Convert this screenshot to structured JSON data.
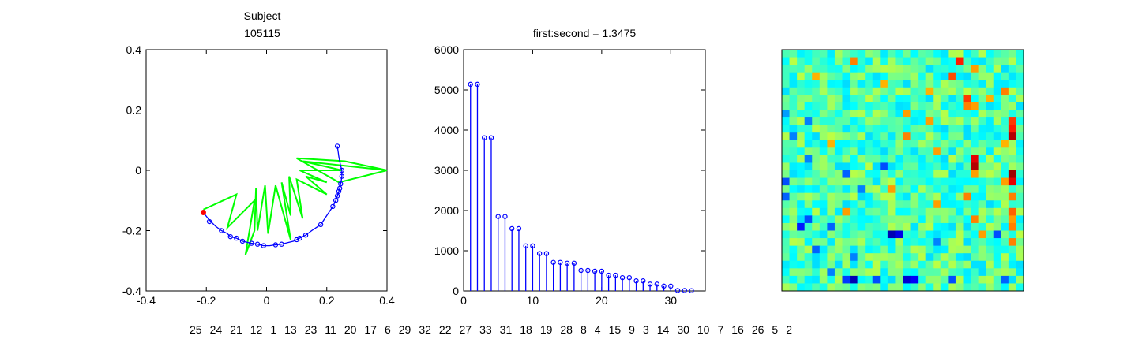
{
  "chart_data": [
    {
      "type": "line",
      "title_lines": [
        "Subject",
        "105115"
      ],
      "xlim": [
        -0.4,
        0.4
      ],
      "ylim": [
        -0.4,
        0.4
      ],
      "xticks": [
        -0.4,
        -0.2,
        0,
        0.2,
        0.4
      ],
      "yticks": [
        -0.4,
        -0.2,
        0,
        0.2,
        0.4
      ],
      "tick_labels_x": [
        "-0.4",
        "-0.2",
        "0",
        "0.2",
        "0.4"
      ],
      "tick_labels_y": [
        "-0.4",
        "-0.2",
        "0",
        "0.2",
        "0.4"
      ],
      "grid": false,
      "colors": {
        "curve": "#0000ff",
        "markers": "#0000ff",
        "start_marker": "#ff0000",
        "spokes": "#00ff00"
      },
      "curve_points": [
        [
          -0.21,
          -0.14
        ],
        [
          -0.19,
          -0.165
        ],
        [
          -0.17,
          -0.185
        ],
        [
          -0.15,
          -0.2
        ],
        [
          -0.13,
          -0.21
        ],
        [
          -0.12,
          -0.22
        ],
        [
          -0.1,
          -0.225
        ],
        [
          -0.09,
          -0.23
        ],
        [
          -0.08,
          -0.235
        ],
        [
          -0.06,
          -0.24
        ],
        [
          -0.05,
          -0.242
        ],
        [
          -0.03,
          -0.245
        ],
        [
          -0.01,
          -0.25
        ],
        [
          0.01,
          -0.25
        ],
        [
          0.03,
          -0.247
        ],
        [
          0.05,
          -0.245
        ],
        [
          0.07,
          -0.24
        ],
        [
          0.09,
          -0.235
        ],
        [
          0.1,
          -0.23
        ],
        [
          0.11,
          -0.225
        ],
        [
          0.13,
          -0.215
        ],
        [
          0.15,
          -0.2
        ],
        [
          0.18,
          -0.18
        ],
        [
          0.2,
          -0.15
        ],
        [
          0.22,
          -0.12
        ],
        [
          0.23,
          -0.1
        ],
        [
          0.235,
          -0.085
        ],
        [
          0.24,
          -0.07
        ],
        [
          0.243,
          -0.06
        ],
        [
          0.246,
          -0.045
        ],
        [
          0.248,
          -0.035
        ],
        [
          0.25,
          -0.02
        ],
        [
          0.25,
          0.0
        ],
        [
          0.245,
          0.02
        ],
        [
          0.24,
          0.045
        ],
        [
          0.238,
          0.06
        ],
        [
          0.235,
          0.08
        ]
      ],
      "markers": [
        [
          -0.19,
          -0.17
        ],
        [
          -0.15,
          -0.2
        ],
        [
          -0.12,
          -0.22
        ],
        [
          -0.1,
          -0.225
        ],
        [
          -0.08,
          -0.235
        ],
        [
          -0.05,
          -0.242
        ],
        [
          -0.03,
          -0.245
        ],
        [
          -0.01,
          -0.25
        ],
        [
          0.03,
          -0.247
        ],
        [
          0.05,
          -0.245
        ],
        [
          0.1,
          -0.23
        ],
        [
          0.11,
          -0.225
        ],
        [
          0.13,
          -0.215
        ],
        [
          0.18,
          -0.18
        ],
        [
          0.22,
          -0.12
        ],
        [
          0.23,
          -0.1
        ],
        [
          0.235,
          -0.085
        ],
        [
          0.24,
          -0.07
        ],
        [
          0.243,
          -0.06
        ],
        [
          0.246,
          -0.045
        ],
        [
          0.25,
          -0.02
        ],
        [
          0.25,
          0.0
        ],
        [
          0.235,
          0.08
        ]
      ],
      "start_point": [
        -0.21,
        -0.14
      ],
      "spoke_path": [
        [
          -0.21,
          -0.13
        ],
        [
          -0.1,
          -0.08
        ],
        [
          -0.13,
          -0.19
        ],
        [
          -0.04,
          -0.1
        ],
        [
          -0.07,
          -0.28
        ],
        [
          -0.04,
          -0.2
        ],
        [
          -0.035,
          -0.06
        ],
        [
          -0.03,
          -0.2
        ],
        [
          -0.005,
          -0.05
        ],
        [
          0.005,
          -0.21
        ],
        [
          0.03,
          -0.05
        ],
        [
          0.08,
          -0.23
        ],
        [
          0.05,
          -0.04
        ],
        [
          0.08,
          -0.15
        ],
        [
          0.075,
          -0.02
        ],
        [
          0.12,
          -0.16
        ],
        [
          0.1,
          -0.03
        ],
        [
          0.2,
          -0.08
        ],
        [
          0.13,
          -0.02
        ],
        [
          0.2,
          -0.04
        ],
        [
          0.11,
          0.0
        ],
        [
          0.25,
          0.0
        ],
        [
          0.12,
          0.03
        ],
        [
          0.4,
          0.0
        ],
        [
          0.26,
          0.03
        ],
        [
          0.1,
          0.04
        ],
        [
          0.24,
          -0.04
        ],
        [
          0.4,
          0.0
        ]
      ]
    },
    {
      "type": "bar",
      "subtype": "stem",
      "title": "first:second = 1.3475",
      "xlim": [
        0,
        35
      ],
      "ylim": [
        0,
        6000
      ],
      "xticks": [
        0,
        10,
        20,
        30
      ],
      "yticks": [
        0,
        1000,
        2000,
        3000,
        4000,
        5000,
        6000
      ],
      "tick_labels_x": [
        "0",
        "10",
        "20",
        "30"
      ],
      "tick_labels_y": [
        "0",
        "1000",
        "2000",
        "3000",
        "4000",
        "5000",
        "6000"
      ],
      "grid": false,
      "color": "#0000ff",
      "x": [
        1,
        2,
        3,
        4,
        5,
        6,
        7,
        8,
        9,
        10,
        11,
        12,
        13,
        14,
        15,
        16,
        17,
        18,
        19,
        20,
        21,
        22,
        23,
        24,
        25,
        26,
        27,
        28,
        29,
        30,
        31,
        32,
        33
      ],
      "values": [
        5140,
        5140,
        3810,
        3810,
        1850,
        1850,
        1550,
        1550,
        1120,
        1120,
        930,
        930,
        710,
        710,
        690,
        690,
        510,
        510,
        490,
        490,
        390,
        390,
        330,
        330,
        250,
        250,
        170,
        170,
        120,
        120,
        10,
        10,
        5
      ]
    },
    {
      "type": "heatmap",
      "colormap": "jet",
      "rows": 32,
      "cols": 32,
      "base_level": 0.45,
      "highlights": [
        {
          "row": 1,
          "col": 9,
          "level": 0.75
        },
        {
          "row": 1,
          "col": 23,
          "level": 0.85
        },
        {
          "row": 2,
          "col": 25,
          "level": 0.72
        },
        {
          "row": 3,
          "col": 4,
          "level": 0.7
        },
        {
          "row": 3,
          "col": 22,
          "level": 0.8
        },
        {
          "row": 4,
          "col": 13,
          "level": 0.7
        },
        {
          "row": 5,
          "col": 19,
          "level": 0.7
        },
        {
          "row": 5,
          "col": 29,
          "level": 0.75
        },
        {
          "row": 6,
          "col": 24,
          "level": 0.82
        },
        {
          "row": 6,
          "col": 27,
          "level": 0.7
        },
        {
          "row": 7,
          "col": 24,
          "level": 0.75
        },
        {
          "row": 7,
          "col": 25,
          "level": 0.72
        },
        {
          "row": 8,
          "col": 16,
          "level": 0.72
        },
        {
          "row": 9,
          "col": 19,
          "level": 0.72
        },
        {
          "row": 9,
          "col": 30,
          "level": 0.82
        },
        {
          "row": 10,
          "col": 30,
          "level": 0.85
        },
        {
          "row": 11,
          "col": 16,
          "level": 0.75
        },
        {
          "row": 11,
          "col": 30,
          "level": 0.95
        },
        {
          "row": 12,
          "col": 6,
          "level": 0.7
        },
        {
          "row": 12,
          "col": 29,
          "level": 0.7
        },
        {
          "row": 13,
          "col": 20,
          "level": 0.72
        },
        {
          "row": 16,
          "col": 25,
          "level": 0.72
        },
        {
          "row": 17,
          "col": 29,
          "level": 0.72
        },
        {
          "row": 18,
          "col": 14,
          "level": 0.72
        },
        {
          "row": 19,
          "col": 24,
          "level": 0.75
        },
        {
          "row": 19,
          "col": 30,
          "level": 0.75
        },
        {
          "row": 20,
          "col": 20,
          "level": 0.72
        },
        {
          "row": 21,
          "col": 8,
          "level": 0.72
        },
        {
          "row": 22,
          "col": 25,
          "level": 0.75
        },
        {
          "row": 22,
          "col": 30,
          "level": 0.72
        },
        {
          "row": 24,
          "col": 26,
          "level": 0.72
        },
        {
          "row": 25,
          "col": 30,
          "level": 0.75
        },
        {
          "row": 14,
          "col": 25,
          "level": 0.9
        },
        {
          "row": 15,
          "col": 25,
          "level": 0.95
        },
        {
          "row": 16,
          "col": 30,
          "level": 0.97
        },
        {
          "row": 17,
          "col": 30,
          "level": 0.9
        },
        {
          "row": 21,
          "col": 30,
          "level": 0.78
        },
        {
          "row": 23,
          "col": 30,
          "level": 0.75
        },
        {
          "row": 8,
          "col": 0,
          "level": 0.28
        },
        {
          "row": 9,
          "col": 3,
          "level": 0.25
        },
        {
          "row": 11,
          "col": 1,
          "level": 0.25
        },
        {
          "row": 14,
          "col": 3,
          "level": 0.25
        },
        {
          "row": 15,
          "col": 13,
          "level": 0.2
        },
        {
          "row": 16,
          "col": 8,
          "level": 0.22
        },
        {
          "row": 17,
          "col": 0,
          "level": 0.2
        },
        {
          "row": 18,
          "col": 10,
          "level": 0.25
        },
        {
          "row": 19,
          "col": 0,
          "level": 0.22
        },
        {
          "row": 22,
          "col": 3,
          "level": 0.2
        },
        {
          "row": 23,
          "col": 2,
          "level": 0.15
        },
        {
          "row": 23,
          "col": 6,
          "level": 0.22
        },
        {
          "row": 24,
          "col": 14,
          "level": 0.05
        },
        {
          "row": 24,
          "col": 15,
          "level": 0.1
        },
        {
          "row": 24,
          "col": 28,
          "level": 0.2
        },
        {
          "row": 25,
          "col": 20,
          "level": 0.25
        },
        {
          "row": 26,
          "col": 4,
          "level": 0.22
        },
        {
          "row": 27,
          "col": 9,
          "level": 0.25
        },
        {
          "row": 29,
          "col": 6,
          "level": 0.25
        },
        {
          "row": 30,
          "col": 8,
          "level": 0.18
        },
        {
          "row": 30,
          "col": 9,
          "level": 0.05
        },
        {
          "row": 30,
          "col": 16,
          "level": 0.08
        },
        {
          "row": 30,
          "col": 17,
          "level": 0.12
        },
        {
          "row": 30,
          "col": 12,
          "level": 0.2
        },
        {
          "row": 30,
          "col": 22,
          "level": 0.2
        },
        {
          "row": 30,
          "col": 29,
          "level": 0.22
        }
      ]
    }
  ],
  "order_numbers": [
    "25",
    "24",
    "21",
    "12",
    "1",
    "13",
    "23",
    "11",
    "20",
    "17",
    "6",
    "29",
    "32",
    "22",
    "27",
    "33",
    "31",
    "18",
    "19",
    "28",
    "8",
    "4",
    "15",
    "9",
    "3",
    "14",
    "30",
    "10",
    "7",
    "16",
    "26",
    "5",
    "2"
  ]
}
